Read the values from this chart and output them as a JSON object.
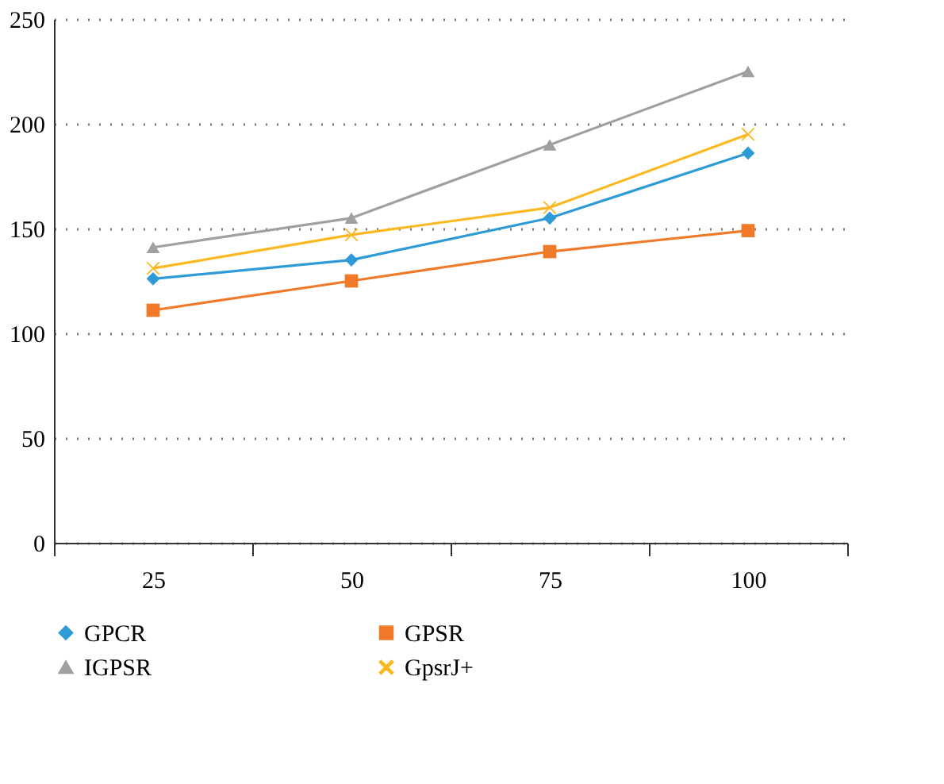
{
  "chart_data": {
    "type": "line",
    "categories": [
      "25",
      "50",
      "75",
      "100"
    ],
    "series": [
      {
        "name": "GPCR",
        "color": "#2e9bd6",
        "marker": "diamond",
        "values": [
          126,
          135,
          155,
          186
        ]
      },
      {
        "name": "GPSR",
        "color": "#f07a2a",
        "marker": "square",
        "values": [
          111,
          125,
          139,
          149
        ]
      },
      {
        "name": "IGPSR",
        "color": "#a0a0a0",
        "marker": "triangle",
        "values": [
          141,
          155,
          190,
          225
        ]
      },
      {
        "name": "GpsrJ+",
        "color": "#fbb820",
        "marker": "cross",
        "values": [
          131,
          147,
          160,
          195
        ]
      }
    ],
    "ylim": [
      0,
      250
    ],
    "yticks": [
      0,
      50,
      100,
      150,
      200,
      250
    ],
    "grid": "y",
    "legend": "bottom",
    "line_style": "solid"
  }
}
